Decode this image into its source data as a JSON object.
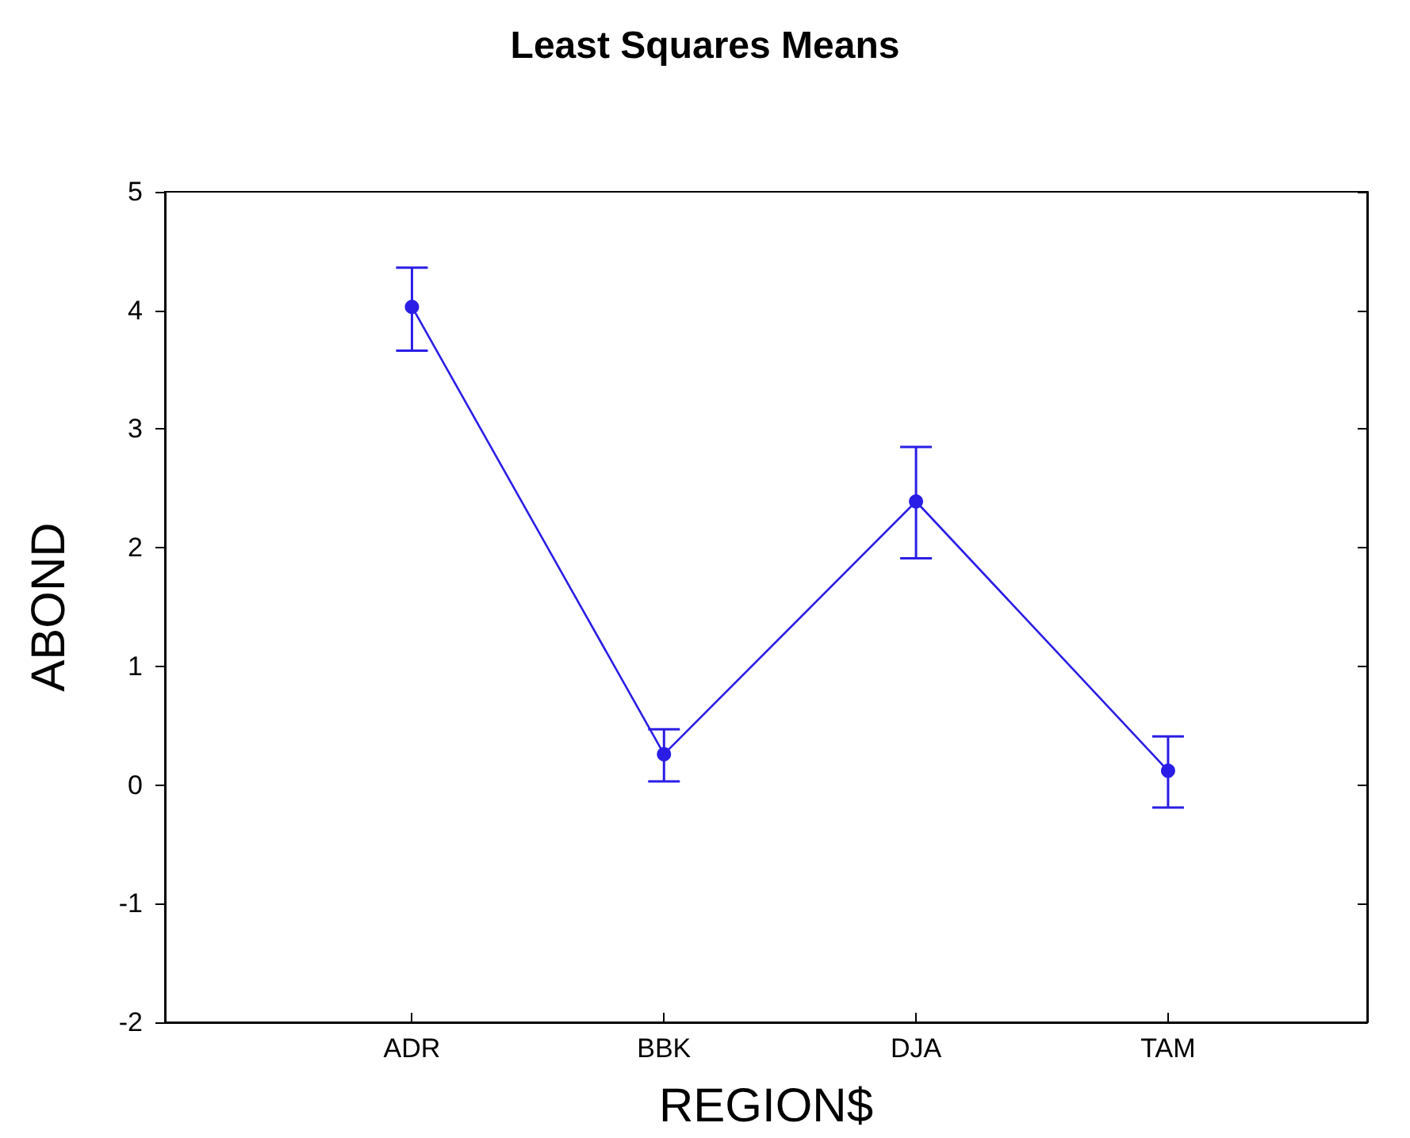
{
  "chart_data": {
    "type": "line",
    "title": "Least Squares Means",
    "xlabel": "REGION$",
    "ylabel": "ABOND",
    "categories": [
      "ADR",
      "BBK",
      "DJA",
      "TAM"
    ],
    "series": [
      {
        "color": "#2a1ee6",
        "values": [
          4.03,
          0.26,
          2.39,
          0.12
        ],
        "errors": [
          [
            3.66,
            4.36
          ],
          [
            0.03,
            0.47
          ],
          [
            1.91,
            2.85
          ],
          [
            -0.19,
            0.41
          ]
        ]
      }
    ],
    "ylim": [
      -2,
      5
    ],
    "yticks": [
      -2,
      -1,
      0,
      1,
      2,
      3,
      4,
      5
    ],
    "marker": "circle",
    "line_style": "solid"
  }
}
